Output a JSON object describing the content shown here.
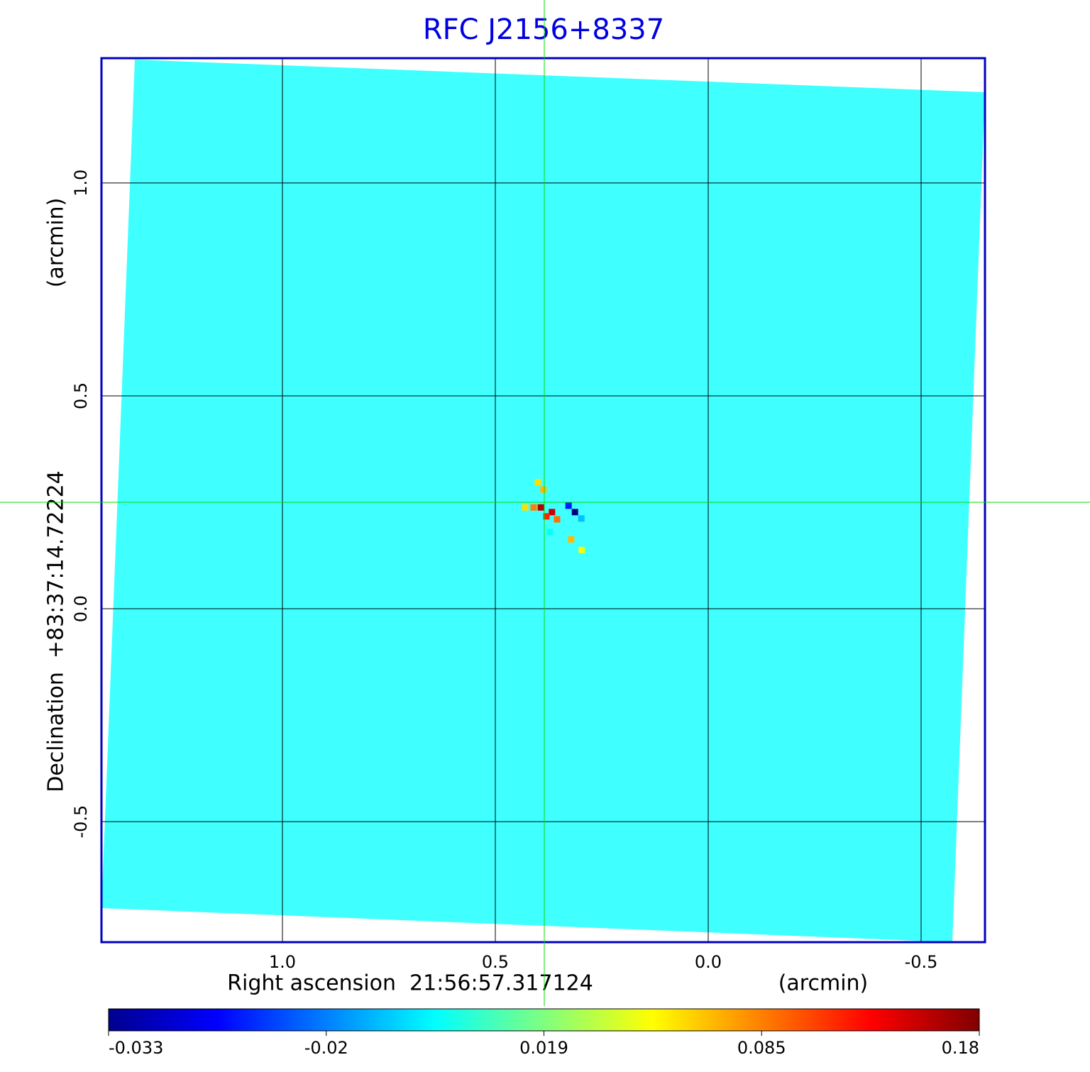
{
  "chart_data": {
    "type": "image",
    "title": "RFC J2156+8337",
    "xlabel": "Right ascension  21:56:57.317124",
    "xunit": "(arcmin)",
    "ylabel": "Declination  +83:37:14.72224",
    "yunit": "(arcmin)",
    "xlim": [
      1.425,
      -0.65
    ],
    "ylim": [
      -0.783,
      1.293
    ],
    "xticks": [
      {
        "value": 1,
        "label": "1.0"
      },
      0.5,
      {
        "value": 0,
        "label": "0.0"
      },
      -0.5
    ],
    "yticks": [
      -0.5,
      {
        "value": 0,
        "label": "0.0"
      },
      0.5,
      {
        "value": 1,
        "label": "1.0"
      }
    ],
    "grid": true,
    "crosshair": {
      "x": 0.385,
      "y": 0.25,
      "color": "#00e000"
    },
    "colorbar_ticks": [
      -0.033,
      -0.02,
      0.019,
      0.085,
      0.18
    ],
    "pixels": [
      {
        "x": 0.393,
        "y": 0.238,
        "value": 0.16
      },
      {
        "x": 0.367,
        "y": 0.227,
        "value": 0.15
      },
      {
        "x": 0.38,
        "y": 0.217,
        "value": 0.12
      },
      {
        "x": 0.41,
        "y": 0.238,
        "value": 0.085
      },
      {
        "x": 0.355,
        "y": 0.21,
        "value": 0.09
      },
      {
        "x": 0.328,
        "y": 0.242,
        "value": -0.025
      },
      {
        "x": 0.313,
        "y": 0.227,
        "value": -0.033
      },
      {
        "x": 0.298,
        "y": 0.212,
        "value": -0.01
      },
      {
        "x": 0.387,
        "y": 0.28,
        "value": 0.07
      },
      {
        "x": 0.4,
        "y": 0.297,
        "value": 0.06
      },
      {
        "x": 0.322,
        "y": 0.163,
        "value": 0.07
      },
      {
        "x": 0.297,
        "y": 0.138,
        "value": 0.05
      },
      {
        "x": 0.43,
        "y": 0.238,
        "value": 0.06
      },
      {
        "x": 0.372,
        "y": 0.18,
        "value": 0.0
      }
    ]
  }
}
